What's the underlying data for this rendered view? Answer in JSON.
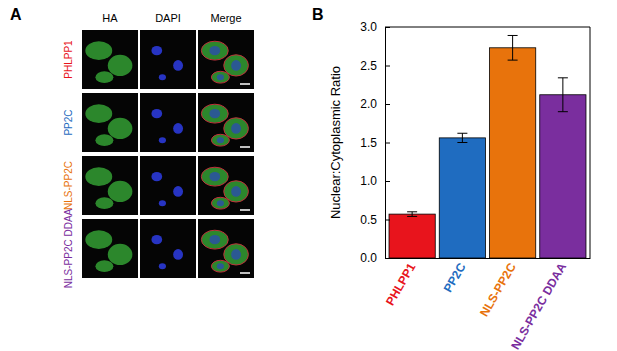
{
  "figure": {
    "panels": [
      {
        "label": "A",
        "columns": [
          "HA",
          "DAPI",
          "Merge"
        ],
        "rows": [
          {
            "label": "PHLPP1",
            "color": "#e8141c"
          },
          {
            "label": "PP2C",
            "color": "#1f6cc0"
          },
          {
            "label": "NLS-PP2C",
            "color": "#e8730c"
          },
          {
            "label": "NLS-PP2C DDAA",
            "color": "#7a2e9e"
          }
        ]
      },
      {
        "label": "B"
      }
    ]
  },
  "chart_data": {
    "type": "bar",
    "y_label": "Nuclear:Cytoplasmic Ratio",
    "categories": [
      "PHLPP1",
      "PP2C",
      "NLS-PP2C",
      "NLS-PP2C DDAA"
    ],
    "values": [
      0.57,
      1.56,
      2.73,
      2.12
    ],
    "errors": [
      0.03,
      0.06,
      0.16,
      0.22
    ],
    "colors": [
      "#e8141c",
      "#1f6cc0",
      "#e8730c",
      "#7a2e9e"
    ],
    "ylim": [
      0,
      3
    ],
    "yticks": [
      {
        "value": 0,
        "label": "0.0"
      },
      0.5,
      {
        "value": 1,
        "label": "1.0"
      },
      1.5,
      {
        "value": 2,
        "label": "2.0"
      },
      2.5,
      {
        "value": 3,
        "label": "3.0"
      }
    ]
  }
}
